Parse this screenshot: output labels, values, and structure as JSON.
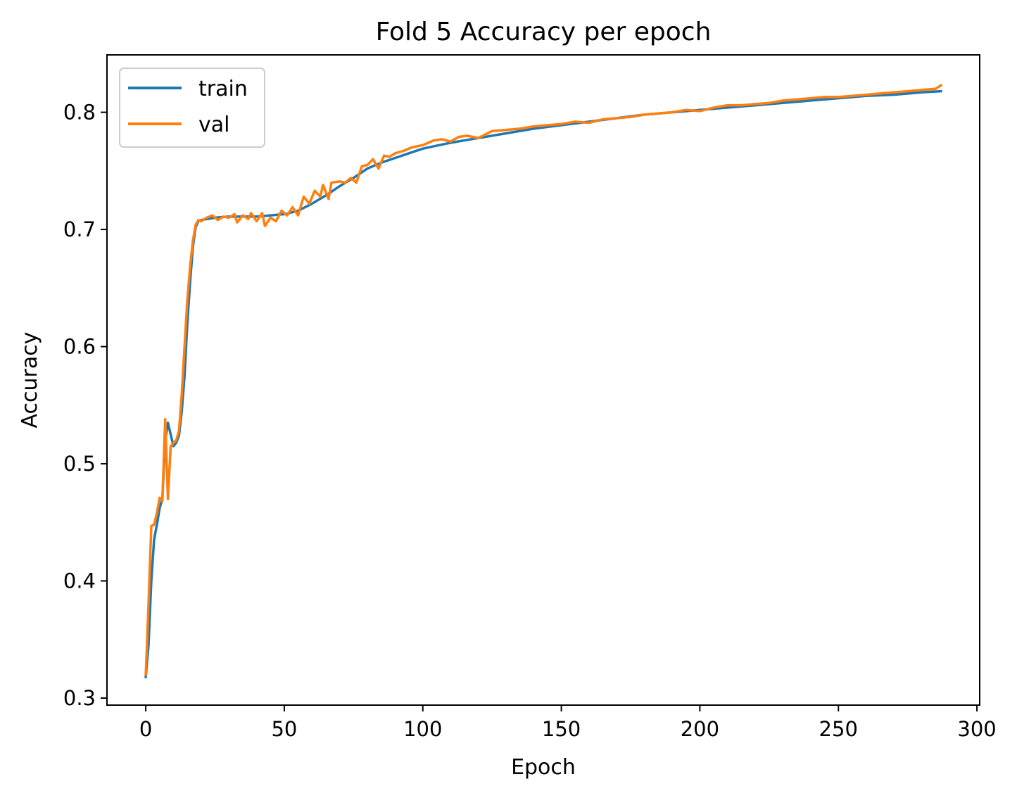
{
  "chart_data": {
    "type": "line",
    "title": "Fold 5 Accuracy per epoch",
    "xlabel": "Epoch",
    "ylabel": "Accuracy",
    "xlim": [
      -14,
      301
    ],
    "ylim": [
      0.294,
      0.849
    ],
    "xticks": [
      0,
      50,
      100,
      150,
      200,
      250,
      300
    ],
    "yticks": [
      0.3,
      0.4,
      0.5,
      0.6,
      0.7,
      0.8
    ],
    "grid": false,
    "legend": "upper-left",
    "series": [
      {
        "name": "train",
        "color": "#1f77b4",
        "points": [
          [
            0,
            0.318
          ],
          [
            1,
            0.345
          ],
          [
            2,
            0.4
          ],
          [
            3,
            0.435
          ],
          [
            4,
            0.448
          ],
          [
            5,
            0.462
          ],
          [
            6,
            0.47
          ],
          [
            7,
            0.52
          ],
          [
            8,
            0.535
          ],
          [
            9,
            0.525
          ],
          [
            10,
            0.515
          ],
          [
            11,
            0.518
          ],
          [
            12,
            0.524
          ],
          [
            13,
            0.545
          ],
          [
            14,
            0.575
          ],
          [
            15,
            0.62
          ],
          [
            16,
            0.655
          ],
          [
            17,
            0.685
          ],
          [
            18,
            0.702
          ],
          [
            19,
            0.707
          ],
          [
            20,
            0.708
          ],
          [
            25,
            0.71
          ],
          [
            30,
            0.711
          ],
          [
            40,
            0.711
          ],
          [
            50,
            0.713
          ],
          [
            55,
            0.716
          ],
          [
            60,
            0.722
          ],
          [
            65,
            0.729
          ],
          [
            70,
            0.737
          ],
          [
            75,
            0.744
          ],
          [
            80,
            0.752
          ],
          [
            85,
            0.757
          ],
          [
            90,
            0.761
          ],
          [
            95,
            0.765
          ],
          [
            100,
            0.769
          ],
          [
            110,
            0.774
          ],
          [
            120,
            0.778
          ],
          [
            130,
            0.782
          ],
          [
            140,
            0.786
          ],
          [
            150,
            0.789
          ],
          [
            160,
            0.792
          ],
          [
            170,
            0.795
          ],
          [
            180,
            0.798
          ],
          [
            190,
            0.8
          ],
          [
            200,
            0.802
          ],
          [
            210,
            0.804
          ],
          [
            220,
            0.806
          ],
          [
            230,
            0.808
          ],
          [
            240,
            0.81
          ],
          [
            250,
            0.812
          ],
          [
            260,
            0.814
          ],
          [
            270,
            0.815
          ],
          [
            280,
            0.817
          ],
          [
            287,
            0.818
          ]
        ]
      },
      {
        "name": "val",
        "color": "#ff7f0e",
        "points": [
          [
            0,
            0.32
          ],
          [
            1,
            0.38
          ],
          [
            2,
            0.447
          ],
          [
            3,
            0.448
          ],
          [
            4,
            0.458
          ],
          [
            5,
            0.471
          ],
          [
            6,
            0.468
          ],
          [
            7,
            0.538
          ],
          [
            8,
            0.47
          ],
          [
            9,
            0.515
          ],
          [
            10,
            0.518
          ],
          [
            11,
            0.52
          ],
          [
            12,
            0.528
          ],
          [
            13,
            0.56
          ],
          [
            14,
            0.6
          ],
          [
            15,
            0.64
          ],
          [
            16,
            0.668
          ],
          [
            17,
            0.69
          ],
          [
            18,
            0.704
          ],
          [
            19,
            0.708
          ],
          [
            20,
            0.707
          ],
          [
            22,
            0.71
          ],
          [
            24,
            0.712
          ],
          [
            26,
            0.708
          ],
          [
            28,
            0.711
          ],
          [
            30,
            0.71
          ],
          [
            32,
            0.713
          ],
          [
            33,
            0.706
          ],
          [
            35,
            0.712
          ],
          [
            37,
            0.709
          ],
          [
            38,
            0.714
          ],
          [
            40,
            0.707
          ],
          [
            42,
            0.714
          ],
          [
            43,
            0.703
          ],
          [
            45,
            0.71
          ],
          [
            47,
            0.707
          ],
          [
            49,
            0.716
          ],
          [
            51,
            0.712
          ],
          [
            53,
            0.719
          ],
          [
            55,
            0.712
          ],
          [
            57,
            0.728
          ],
          [
            59,
            0.722
          ],
          [
            61,
            0.733
          ],
          [
            63,
            0.728
          ],
          [
            64,
            0.738
          ],
          [
            66,
            0.726
          ],
          [
            67,
            0.74
          ],
          [
            70,
            0.741
          ],
          [
            72,
            0.74
          ],
          [
            74,
            0.744
          ],
          [
            76,
            0.74
          ],
          [
            78,
            0.754
          ],
          [
            80,
            0.755
          ],
          [
            82,
            0.76
          ],
          [
            84,
            0.752
          ],
          [
            86,
            0.763
          ],
          [
            88,
            0.762
          ],
          [
            90,
            0.765
          ],
          [
            93,
            0.767
          ],
          [
            96,
            0.77
          ],
          [
            100,
            0.772
          ],
          [
            104,
            0.776
          ],
          [
            107,
            0.777
          ],
          [
            110,
            0.775
          ],
          [
            113,
            0.779
          ],
          [
            116,
            0.78
          ],
          [
            120,
            0.778
          ],
          [
            125,
            0.784
          ],
          [
            130,
            0.785
          ],
          [
            135,
            0.786
          ],
          [
            140,
            0.788
          ],
          [
            145,
            0.789
          ],
          [
            150,
            0.79
          ],
          [
            155,
            0.792
          ],
          [
            160,
            0.791
          ],
          [
            165,
            0.794
          ],
          [
            170,
            0.795
          ],
          [
            175,
            0.796
          ],
          [
            180,
            0.798
          ],
          [
            185,
            0.799
          ],
          [
            190,
            0.8
          ],
          [
            195,
            0.802
          ],
          [
            200,
            0.801
          ],
          [
            205,
            0.804
          ],
          [
            210,
            0.806
          ],
          [
            215,
            0.806
          ],
          [
            220,
            0.807
          ],
          [
            225,
            0.808
          ],
          [
            230,
            0.81
          ],
          [
            235,
            0.811
          ],
          [
            240,
            0.812
          ],
          [
            245,
            0.813
          ],
          [
            250,
            0.813
          ],
          [
            255,
            0.814
          ],
          [
            260,
            0.815
          ],
          [
            265,
            0.816
          ],
          [
            270,
            0.817
          ],
          [
            275,
            0.818
          ],
          [
            280,
            0.819
          ],
          [
            285,
            0.82
          ],
          [
            287,
            0.823
          ]
        ]
      }
    ]
  }
}
